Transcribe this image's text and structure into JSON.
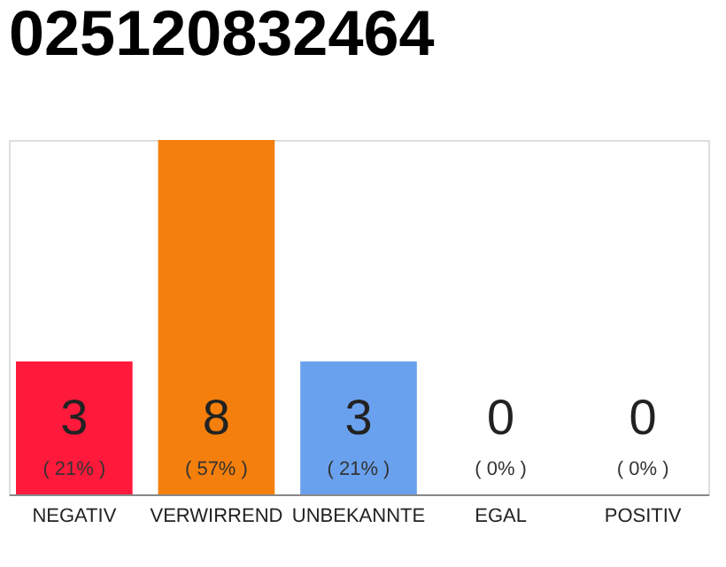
{
  "chart_data": {
    "type": "bar",
    "title": "025120832464",
    "categories": [
      "NEGATIV",
      "VERWIRREND",
      "UNBEKANNTE",
      "EGAL",
      "POSITIV"
    ],
    "values": [
      3,
      8,
      3,
      0,
      0
    ],
    "colors": [
      "#ff1a3c",
      "#f47f0c",
      "#6aa1ef",
      "#cccccc",
      "#cccccc"
    ],
    "data_labels": true,
    "annotations": [
      "( 21% )",
      "( 57% )",
      "( 21% )",
      "( 0% )",
      "( 0% )"
    ],
    "grid": false
  }
}
